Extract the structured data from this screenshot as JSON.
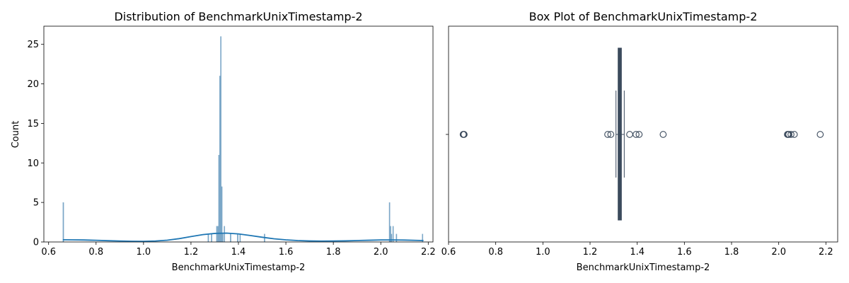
{
  "chart_data": [
    {
      "type": "histogram",
      "title": "Distribution of BenchmarkUnixTimestamp-2",
      "xlabel": "BenchmarkUnixTimestamp-2",
      "ylabel": "Count",
      "xlim": [
        0.58,
        2.22
      ],
      "ylim": [
        0,
        27.3
      ],
      "xticks": [
        0.6,
        0.8,
        1.0,
        1.2,
        1.4,
        1.6,
        1.8,
        2.0,
        2.2
      ],
      "xtick_labels": [
        "0.6",
        "0.8",
        "1.0",
        "1.2",
        "1.4",
        "1.6",
        "1.8",
        "2.0",
        "2.2"
      ],
      "yticks": [
        0,
        5,
        10,
        15,
        20,
        25
      ],
      "ytick_labels": [
        "0",
        "5",
        "10",
        "15",
        "20",
        "25"
      ],
      "bar_color": "#7aa6c7",
      "kde_color": "#1f77b4",
      "bin_width": 0.004,
      "bins": [
        {
          "x": 0.662,
          "count": 5
        },
        {
          "x": 1.273,
          "count": 1
        },
        {
          "x": 1.287,
          "count": 1
        },
        {
          "x": 1.309,
          "count": 2
        },
        {
          "x": 1.314,
          "count": 2
        },
        {
          "x": 1.318,
          "count": 11
        },
        {
          "x": 1.322,
          "count": 21
        },
        {
          "x": 1.326,
          "count": 26
        },
        {
          "x": 1.33,
          "count": 7
        },
        {
          "x": 1.334,
          "count": 1
        },
        {
          "x": 1.341,
          "count": 2
        },
        {
          "x": 1.367,
          "count": 1
        },
        {
          "x": 1.397,
          "count": 1
        },
        {
          "x": 1.407,
          "count": 1
        },
        {
          "x": 1.51,
          "count": 1
        },
        {
          "x": 2.037,
          "count": 5
        },
        {
          "x": 2.041,
          "count": 2
        },
        {
          "x": 2.045,
          "count": 1
        },
        {
          "x": 2.052,
          "count": 2
        },
        {
          "x": 2.066,
          "count": 1
        },
        {
          "x": 2.176,
          "count": 1
        }
      ],
      "kde": {
        "x": [
          0.66,
          0.7,
          0.75,
          0.8,
          0.85,
          0.9,
          0.95,
          1.0,
          1.05,
          1.1,
          1.15,
          1.2,
          1.25,
          1.3,
          1.35,
          1.4,
          1.45,
          1.5,
          1.55,
          1.6,
          1.65,
          1.7,
          1.75,
          1.8,
          1.85,
          1.9,
          1.95,
          2.0,
          2.05,
          2.1,
          2.15,
          2.18
        ],
        "y": [
          0.28,
          0.27,
          0.25,
          0.21,
          0.16,
          0.12,
          0.09,
          0.08,
          0.12,
          0.22,
          0.42,
          0.68,
          0.93,
          1.08,
          1.12,
          1.02,
          0.82,
          0.6,
          0.4,
          0.27,
          0.18,
          0.13,
          0.11,
          0.12,
          0.14,
          0.18,
          0.22,
          0.26,
          0.26,
          0.24,
          0.2,
          0.18
        ]
      }
    },
    {
      "type": "box",
      "title": "Box Plot of BenchmarkUnixTimestamp-2",
      "xlabel": "BenchmarkUnixTimestamp-2",
      "xlim": [
        0.6,
        2.25
      ],
      "xticks": [
        0.6,
        0.8,
        1.0,
        1.2,
        1.4,
        1.6,
        1.8,
        2.0,
        2.2
      ],
      "xtick_labels": [
        "0.6",
        "0.8",
        "1.0",
        "1.2",
        "1.4",
        "1.6",
        "1.8",
        "2.0",
        "2.2"
      ],
      "box_color": "#3b4a5c",
      "q1": 1.322,
      "median": 1.326,
      "q3": 1.33,
      "whisker_low": 1.31,
      "whisker_high": 1.345,
      "outliers": [
        0.662,
        0.664,
        0.666,
        1.275,
        1.288,
        1.368,
        1.395,
        1.408,
        1.51,
        2.037,
        2.04,
        2.043,
        2.052,
        2.066,
        2.176
      ]
    }
  ]
}
